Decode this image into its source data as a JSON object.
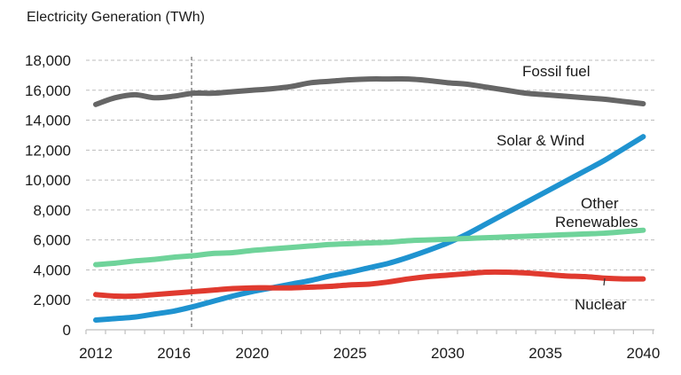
{
  "chart_data": {
    "type": "line",
    "title": "Electricity Generation  (TWh)",
    "xlabel": "",
    "ylabel": "",
    "x": [
      2012,
      2013,
      2014,
      2015,
      2016,
      2017,
      2018,
      2019,
      2020,
      2021,
      2022,
      2023,
      2024,
      2025,
      2026,
      2027,
      2028,
      2029,
      2030,
      2031,
      2032,
      2033,
      2034,
      2035,
      2036,
      2037,
      2038,
      2039,
      2040
    ],
    "xticks": [
      "2012",
      "2016",
      "2020",
      "2025",
      "2030",
      "2035",
      "2040"
    ],
    "ylim": [
      0,
      18000
    ],
    "yticks": [
      "0",
      "2,000",
      "4,000",
      "6,000",
      "8,000",
      "10,000",
      "12,000",
      "14,000",
      "16,000",
      "18,000"
    ],
    "grid": "horizontal dashed",
    "reference_line": {
      "x": 2016.9,
      "style": "dashed vertical"
    },
    "series": [
      {
        "name": "Fossil fuel",
        "color": "#666666",
        "values": [
          15050,
          15500,
          15700,
          15500,
          15600,
          15800,
          15800,
          15900,
          16000,
          16100,
          16250,
          16500,
          16600,
          16700,
          16750,
          16750,
          16750,
          16650,
          16500,
          16400,
          16200,
          16000,
          15800,
          15700,
          15600,
          15500,
          15400,
          15250,
          15100
        ]
      },
      {
        "name": "Solar & Wind",
        "color": "#1f93d0",
        "values": [
          650,
          750,
          850,
          1050,
          1250,
          1550,
          1900,
          2250,
          2550,
          2800,
          3050,
          3300,
          3600,
          3850,
          4150,
          4450,
          4850,
          5300,
          5800,
          6400,
          7100,
          7800,
          8500,
          9200,
          9900,
          10600,
          11300,
          12100,
          12900
        ]
      },
      {
        "name": "Other Renewables",
        "color": "#6fd39a",
        "values": [
          4350,
          4450,
          4600,
          4700,
          4850,
          4950,
          5100,
          5150,
          5300,
          5400,
          5500,
          5600,
          5700,
          5750,
          5800,
          5850,
          5950,
          6000,
          6050,
          6100,
          6150,
          6200,
          6250,
          6300,
          6350,
          6400,
          6450,
          6550,
          6650
        ]
      },
      {
        "name": "Nuclear",
        "color": "#e03a2f",
        "values": [
          2350,
          2250,
          2250,
          2350,
          2450,
          2550,
          2650,
          2750,
          2800,
          2800,
          2800,
          2850,
          2900,
          3000,
          3050,
          3200,
          3400,
          3550,
          3650,
          3750,
          3850,
          3850,
          3800,
          3700,
          3600,
          3550,
          3450,
          3400,
          3400
        ]
      }
    ],
    "annotations": [
      {
        "text": "Fossil fuel",
        "series": "Fossil fuel"
      },
      {
        "text": "Solar & Wind",
        "series": "Solar & Wind"
      },
      {
        "text": "Other",
        "series": "Other Renewables"
      },
      {
        "text": "Renewables",
        "series": "Other Renewables"
      },
      {
        "text": "Nuclear",
        "series": "Nuclear"
      }
    ]
  }
}
